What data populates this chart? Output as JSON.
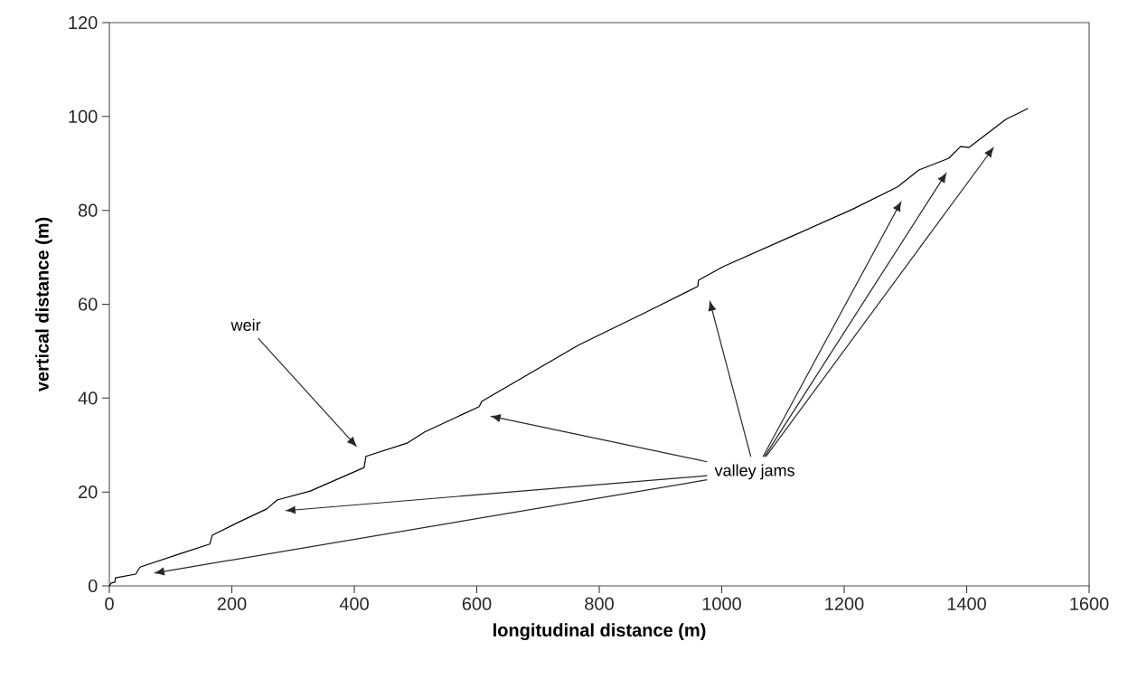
{
  "chart_data": {
    "type": "line",
    "xlabel": "longitudinal distance (m)",
    "ylabel": "vertical distance (m)",
    "xlim": [
      0,
      1600
    ],
    "ylim": [
      0,
      120
    ],
    "xticks": [
      0,
      200,
      400,
      600,
      800,
      1000,
      1200,
      1400,
      1600
    ],
    "yticks": [
      0,
      20,
      40,
      60,
      80,
      100,
      120
    ],
    "grid": false,
    "marker": "none",
    "line_style": "solid",
    "series": [
      {
        "color": "#000000",
        "x": [
          0,
          3,
          9,
          10,
          43,
          50,
          117,
          164,
          168,
          210,
          257,
          274,
          328,
          416,
          419,
          486,
          515,
          604,
          608,
          766,
          884,
          961,
          962,
          1002,
          1120,
          1213,
          1287,
          1322,
          1371,
          1390,
          1404,
          1420,
          1464,
          1500
        ],
        "values": [
          0,
          0.6,
          0.8,
          1.7,
          2.5,
          4.0,
          6.9,
          8.9,
          10.8,
          13.5,
          16.4,
          18.3,
          20.2,
          25.2,
          27.6,
          30.4,
          32.8,
          38.2,
          39.3,
          51.3,
          58.8,
          63.8,
          65.1,
          68.0,
          74.8,
          80.2,
          85.0,
          88.6,
          91.1,
          93.6,
          93.4,
          95.0,
          99.4,
          101.7
        ]
      }
    ],
    "annotations": [
      "weir",
      "valley jams"
    ]
  }
}
